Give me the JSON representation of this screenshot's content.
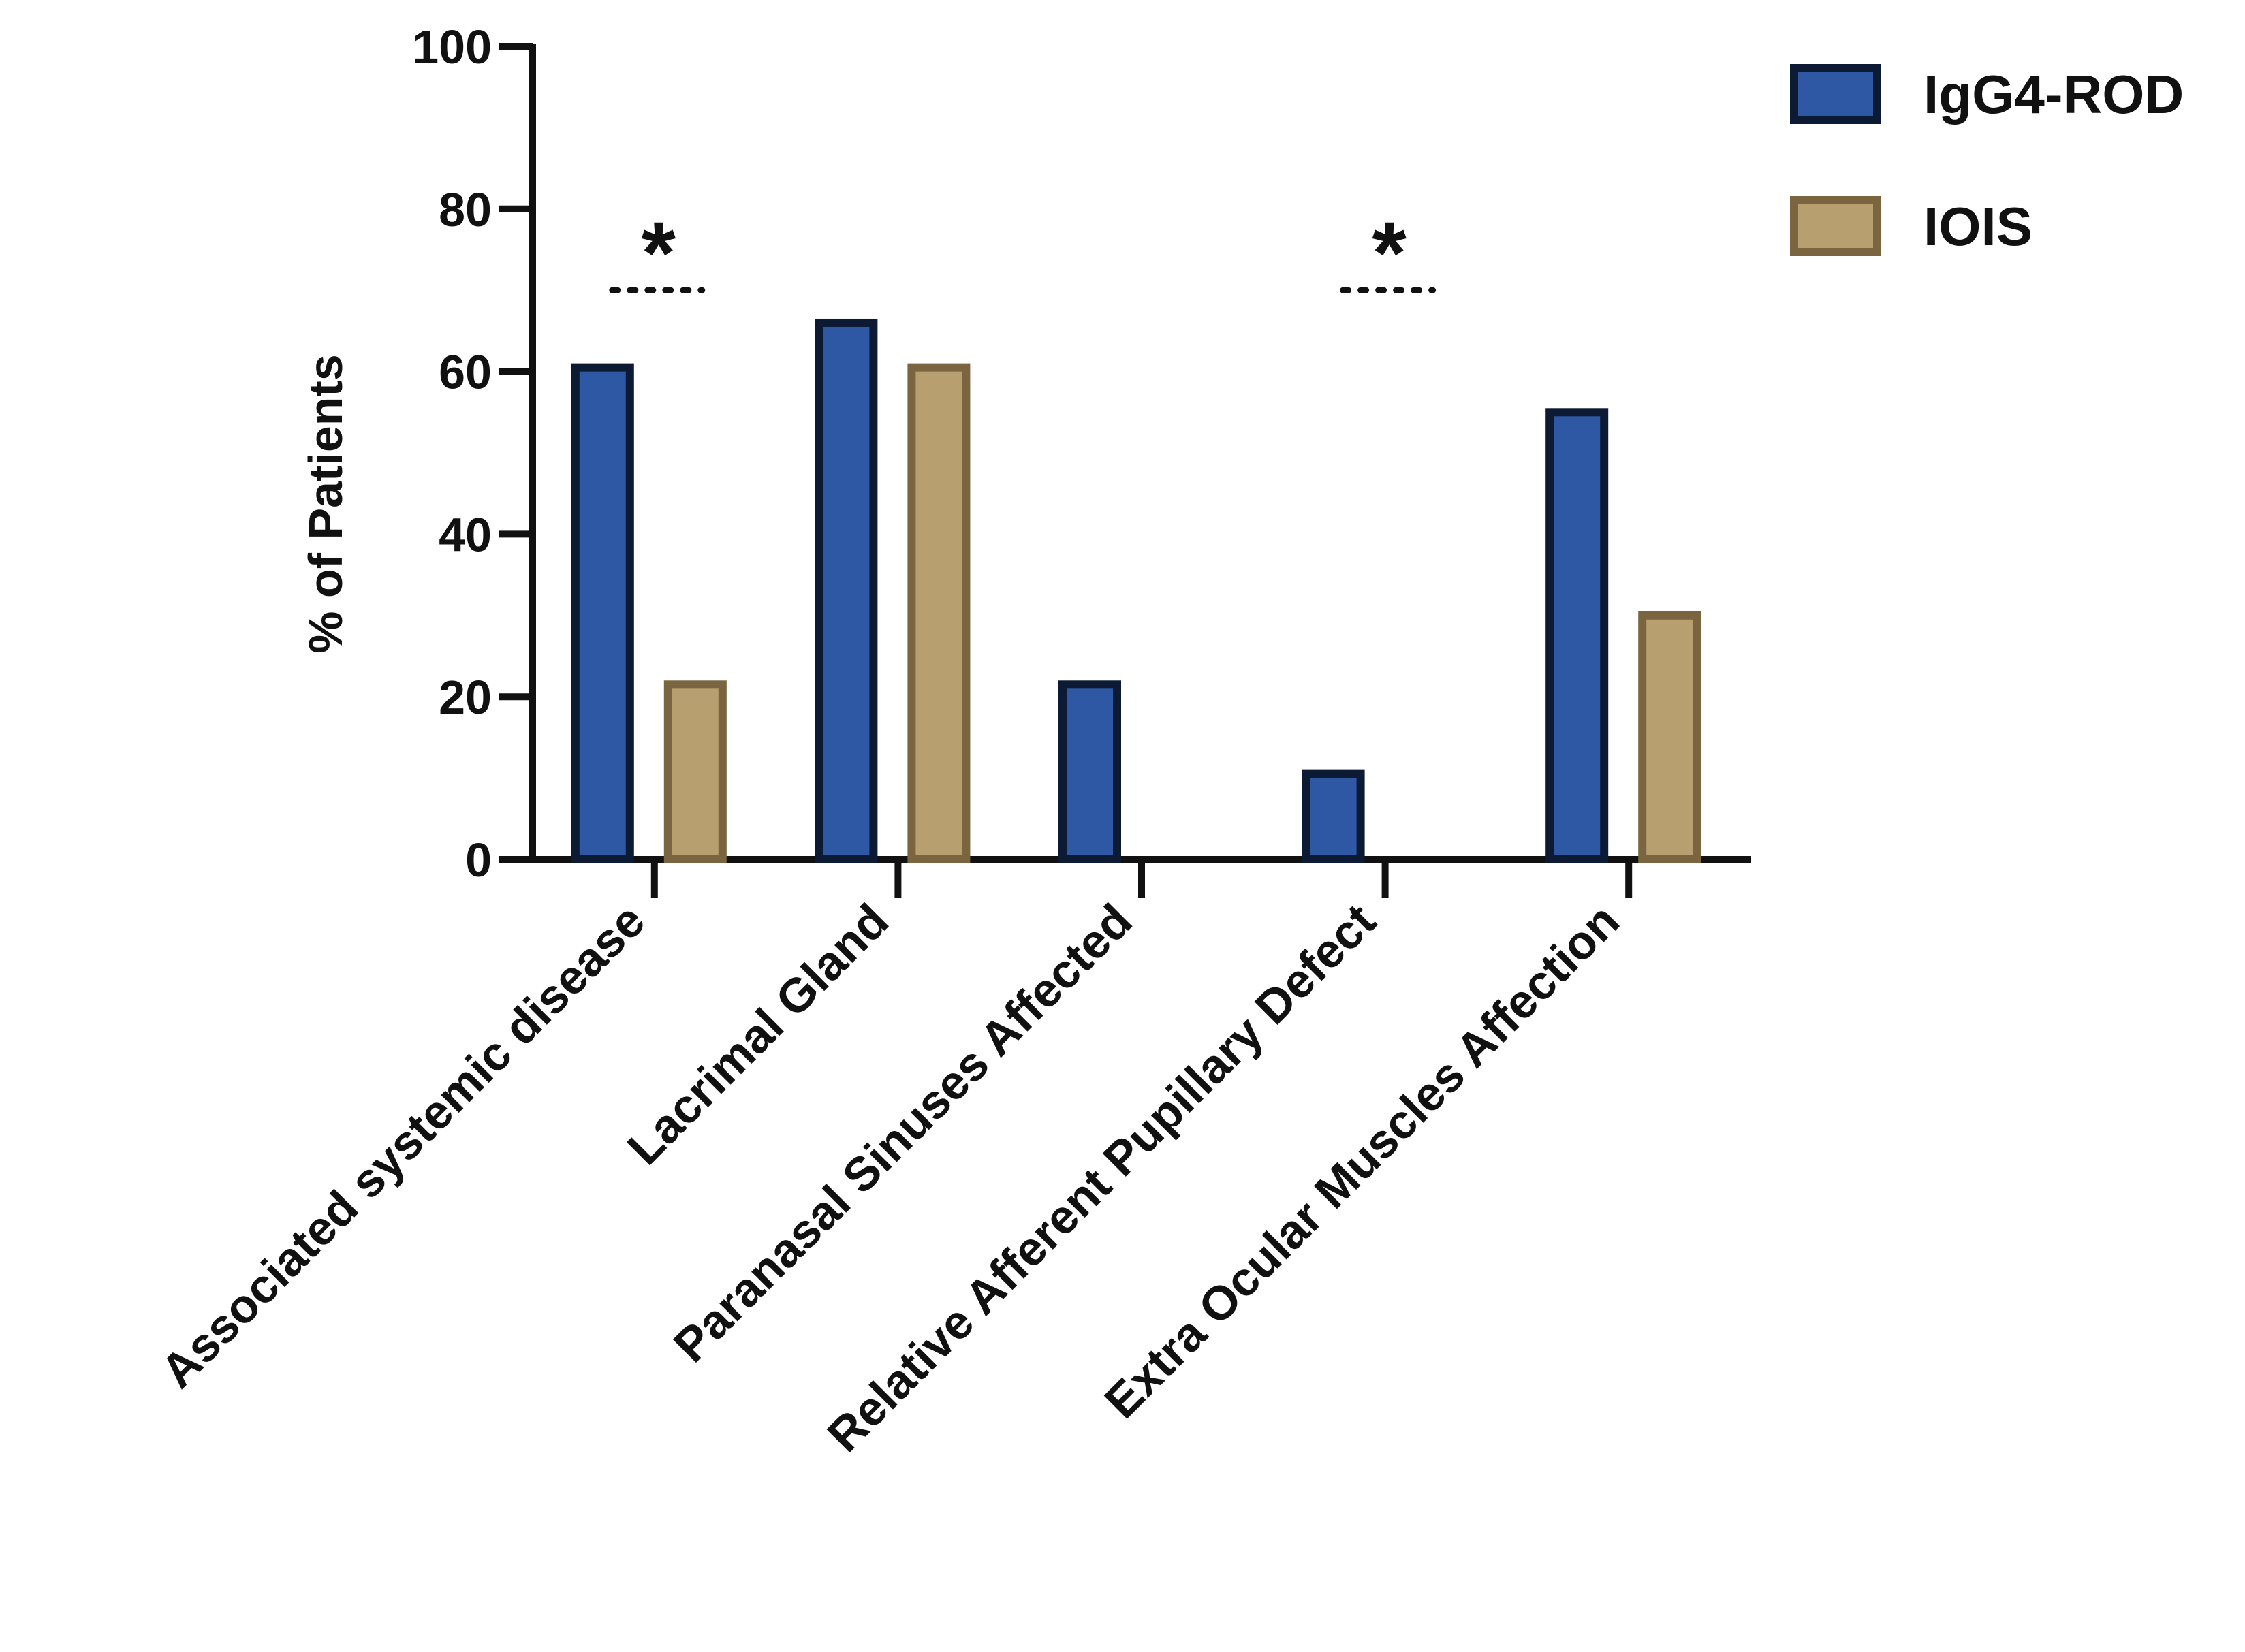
{
  "chart_data": {
    "type": "bar",
    "title": "",
    "xlabel": "",
    "ylabel": "% of Patients",
    "ylim": [
      0,
      100
    ],
    "yticks": [
      0,
      20,
      40,
      60,
      80,
      100
    ],
    "ytick_labels": [
      "0",
      "20",
      "40",
      "60",
      "80",
      "100"
    ],
    "grid": false,
    "legend_position": "top-right",
    "categories": [
      "Associated systemic disease",
      "Lacrimal Gland",
      "Paranasal Sinuses Affected",
      "Relative Afferent Pupillary Defect",
      "Extra Ocular Muscles Affection"
    ],
    "series": [
      {
        "name": "IgG4-ROD",
        "fill": "#2F58A4",
        "stroke": "#0D1A33",
        "values": [
          60.5,
          66,
          21.5,
          10.5,
          55
        ]
      },
      {
        "name": "IOIS",
        "fill": "#B79F70",
        "stroke": "#7A6540",
        "values": [
          21.5,
          60.5,
          0,
          0,
          30
        ]
      }
    ],
    "annotations": [
      {
        "category_index": 0,
        "symbol": "*",
        "dotted_line_y": 70
      },
      {
        "category_index": 3,
        "symbol": "*",
        "dotted_line_y": 70
      }
    ]
  }
}
